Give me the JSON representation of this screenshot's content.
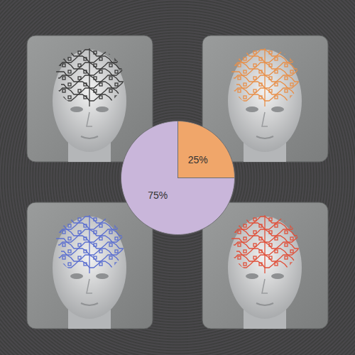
{
  "chart_data": {
    "type": "pie",
    "values": [
      25,
      75
    ],
    "value_labels": [
      "25%",
      "75%"
    ],
    "colors": [
      "#f0a66a",
      "#c9b6da"
    ],
    "data_labels": true
  }
}
